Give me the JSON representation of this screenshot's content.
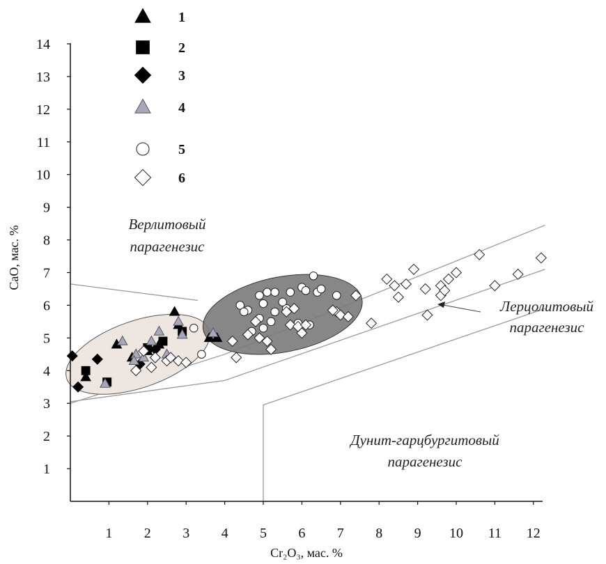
{
  "chart_data": {
    "type": "scatter",
    "title": "",
    "xlabel": "Cr₂O₃, мас. %",
    "ylabel": "CaO, мас. %",
    "xlim": [
      0,
      12.3
    ],
    "ylim": [
      0,
      14
    ],
    "xticks": [
      1,
      2,
      3,
      4,
      5,
      6,
      7,
      8,
      9,
      10,
      11,
      12
    ],
    "yticks": [
      1,
      2,
      3,
      4,
      5,
      6,
      7,
      8,
      9,
      10,
      11,
      12,
      13,
      14
    ],
    "grid": false,
    "legend_position": "top-left",
    "legend": [
      {
        "label": "1",
        "marker": "triangle-filled"
      },
      {
        "label": "2",
        "marker": "square-filled"
      },
      {
        "label": "3",
        "marker": "diamond-filled"
      },
      {
        "label": "4",
        "marker": "triangle-gray"
      },
      {
        "label": "5",
        "marker": "circle-open"
      },
      {
        "label": "6",
        "marker": "diamond-open"
      }
    ],
    "colors": {
      "black": "#000000",
      "gray_fill": "#a8a8bc",
      "light_zone": "#eee6e0",
      "dark_zone": "#7a7a7a",
      "line": "#9a9a9a"
    },
    "regions": [
      {
        "name": "wehrlite",
        "lines": [
          "Верлитовый",
          "парагенезис"
        ]
      },
      {
        "name": "lherzolite",
        "lines": [
          "Лерцолитовый",
          "парагенезис"
        ]
      },
      {
        "name": "dunite",
        "lines": [
          "Дунит-гарцбургитовый",
          "парагенезис"
        ]
      }
    ],
    "series": [
      {
        "name": "1",
        "marker": "triangle-filled",
        "points": [
          [
            0.4,
            3.8
          ],
          [
            1.2,
            4.8
          ],
          [
            1.6,
            4.4
          ],
          [
            2.0,
            4.6
          ],
          [
            2.3,
            4.8
          ],
          [
            2.7,
            5.8
          ],
          [
            2.8,
            5.4
          ],
          [
            3.6,
            5.0
          ],
          [
            3.8,
            5.0
          ]
        ]
      },
      {
        "name": "2",
        "marker": "square-filled",
        "points": [
          [
            0.4,
            4.0
          ],
          [
            0.95,
            3.65
          ],
          [
            2.0,
            4.7
          ],
          [
            2.4,
            4.9
          ],
          [
            2.9,
            5.2
          ]
        ]
      },
      {
        "name": "3",
        "marker": "diamond-filled",
        "points": [
          [
            0.05,
            4.45
          ],
          [
            0.2,
            3.5
          ],
          [
            0.7,
            4.35
          ],
          [
            1.8,
            4.2
          ],
          [
            2.2,
            4.65
          ]
        ]
      },
      {
        "name": "4",
        "marker": "triangle-gray",
        "points": [
          [
            0.9,
            3.6
          ],
          [
            1.35,
            4.9
          ],
          [
            1.7,
            4.5
          ],
          [
            1.9,
            4.4
          ],
          [
            2.1,
            4.9
          ],
          [
            2.3,
            5.2
          ],
          [
            2.5,
            4.5
          ],
          [
            2.8,
            5.5
          ],
          [
            2.9,
            5.1
          ],
          [
            3.7,
            5.15
          ],
          [
            1.65,
            4.3
          ]
        ]
      },
      {
        "name": "5",
        "marker": "circle-open",
        "points": [
          [
            3.2,
            5.3
          ],
          [
            3.4,
            4.5
          ],
          [
            4.4,
            6.0
          ],
          [
            4.6,
            5.85
          ],
          [
            4.9,
            6.3
          ],
          [
            4.9,
            5.6
          ],
          [
            5.0,
            6.05
          ],
          [
            5.1,
            6.4
          ],
          [
            5.2,
            5.5
          ],
          [
            5.3,
            6.4
          ],
          [
            5.6,
            5.9
          ],
          [
            5.7,
            6.4
          ],
          [
            6.0,
            6.55
          ],
          [
            6.1,
            6.45
          ],
          [
            6.3,
            6.9
          ],
          [
            6.4,
            6.4
          ],
          [
            6.5,
            6.5
          ],
          [
            6.2,
            5.4
          ],
          [
            5.9,
            5.45
          ],
          [
            5.0,
            5.3
          ],
          [
            4.7,
            5.2
          ],
          [
            4.5,
            5.8
          ],
          [
            6.9,
            6.3
          ],
          [
            5.3,
            5.8
          ],
          [
            5.5,
            6.1
          ]
        ]
      },
      {
        "name": "6",
        "marker": "diamond-open",
        "points": [
          [
            1.7,
            4.0
          ],
          [
            1.9,
            4.6
          ],
          [
            2.1,
            4.1
          ],
          [
            2.2,
            4.4
          ],
          [
            2.5,
            4.3
          ],
          [
            2.6,
            4.4
          ],
          [
            2.8,
            4.3
          ],
          [
            3.0,
            4.25
          ],
          [
            4.2,
            4.9
          ],
          [
            4.3,
            4.4
          ],
          [
            4.6,
            5.1
          ],
          [
            4.8,
            5.5
          ],
          [
            4.9,
            5.0
          ],
          [
            5.1,
            4.9
          ],
          [
            5.2,
            4.65
          ],
          [
            5.6,
            5.8
          ],
          [
            5.7,
            5.4
          ],
          [
            5.9,
            5.35
          ],
          [
            6.0,
            5.15
          ],
          [
            6.1,
            5.4
          ],
          [
            6.9,
            5.8
          ],
          [
            7.0,
            5.7
          ],
          [
            7.2,
            5.65
          ],
          [
            7.4,
            6.3
          ],
          [
            7.8,
            5.45
          ],
          [
            8.2,
            6.8
          ],
          [
            8.4,
            6.6
          ],
          [
            8.5,
            6.25
          ],
          [
            8.7,
            6.65
          ],
          [
            8.9,
            7.1
          ],
          [
            9.2,
            6.5
          ],
          [
            9.25,
            5.7
          ],
          [
            9.6,
            6.3
          ],
          [
            9.6,
            6.6
          ],
          [
            9.7,
            6.45
          ],
          [
            9.8,
            6.8
          ],
          [
            10.0,
            7.0
          ],
          [
            10.6,
            7.55
          ],
          [
            11.0,
            6.6
          ],
          [
            11.6,
            6.95
          ],
          [
            12.2,
            7.45
          ],
          [
            6.8,
            5.85
          ],
          [
            5.8,
            5.9
          ]
        ]
      }
    ]
  }
}
